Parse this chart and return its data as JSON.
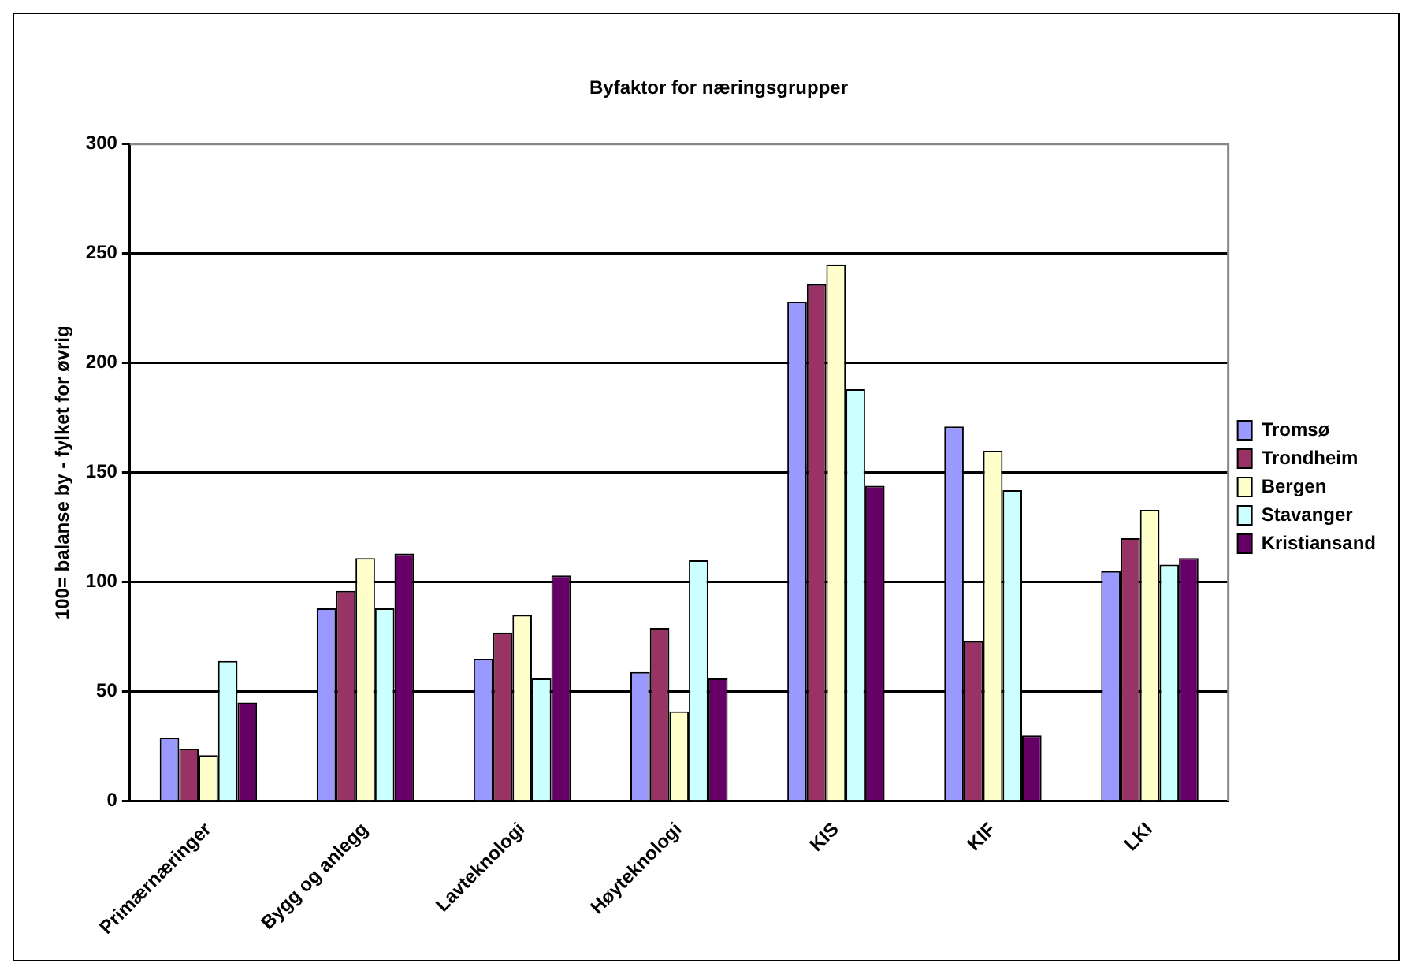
{
  "chart_data": {
    "type": "bar",
    "title": "Byfaktor for næringsgrupper",
    "ylabel": "100= balanse by - fylket for øvrig",
    "categories": [
      "Primærnæringer",
      "Bygg og anlegg",
      "Lavteknologi",
      "Høyteknologi",
      "KIS",
      "KIF",
      "LKI"
    ],
    "series": [
      {
        "name": "Tromsø",
        "color": "#9999ff",
        "values": [
          29,
          88,
          65,
          59,
          228,
          171,
          105
        ]
      },
      {
        "name": "Trondheim",
        "color": "#993366",
        "values": [
          24,
          96,
          77,
          79,
          236,
          73,
          120
        ]
      },
      {
        "name": "Bergen",
        "color": "#ffffcc",
        "values": [
          21,
          111,
          85,
          41,
          245,
          160,
          133
        ]
      },
      {
        "name": "Stavanger",
        "color": "#ccffff",
        "values": [
          64,
          88,
          56,
          110,
          188,
          142,
          108
        ]
      },
      {
        "name": "Kristiansand",
        "color": "#660066",
        "values": [
          45,
          113,
          103,
          56,
          144,
          30,
          111
        ]
      }
    ],
    "ylim": [
      0,
      300
    ],
    "yticks": [
      0,
      50,
      100,
      150,
      200,
      250,
      300
    ],
    "grid": "y",
    "legend": "right"
  }
}
